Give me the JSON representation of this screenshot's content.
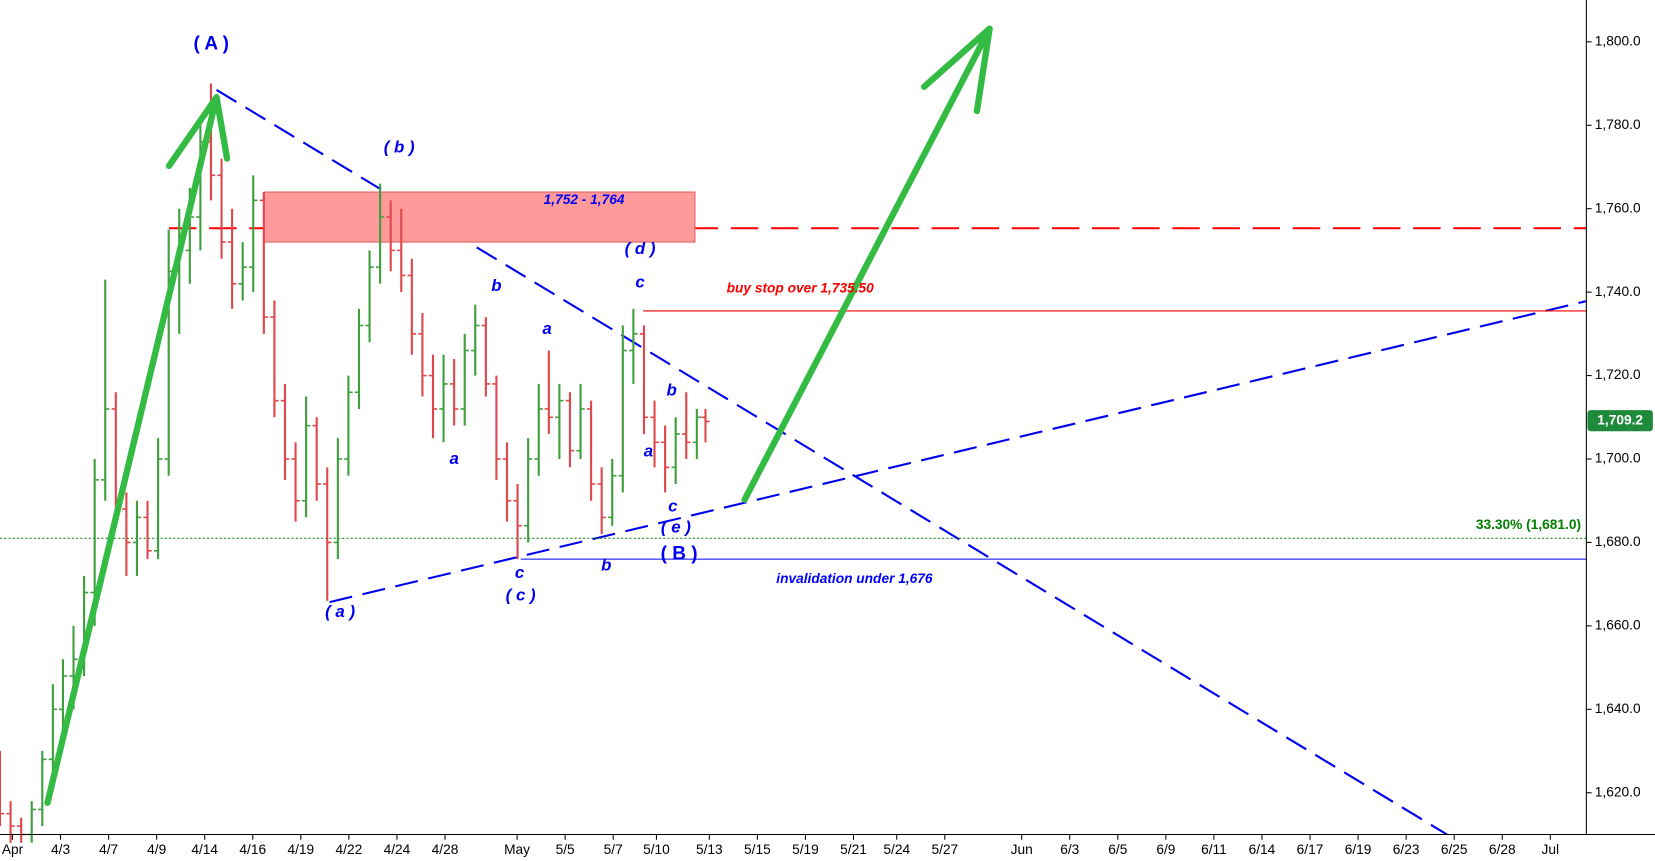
{
  "chart_data": {
    "type": "ohlc",
    "x": [
      -0.26,
      -0.04,
      0.18,
      0.4,
      0.62,
      0.84,
      1.05,
      1.27,
      1.49,
      1.71,
      1.93,
      2.15,
      2.37,
      2.59,
      2.81,
      3.03,
      3.25,
      3.47,
      3.69,
      3.91,
      4.13,
      4.35,
      4.57,
      4.79,
      5.01,
      5.23,
      5.45,
      5.67,
      5.89,
      6.11,
      6.33,
      6.55,
      6.77,
      6.99,
      7.21,
      7.43,
      7.65,
      7.87,
      8.09,
      8.31,
      8.53,
      8.75,
      8.97,
      9.19,
      9.41,
      9.63,
      9.85,
      10.07,
      10.29,
      10.51,
      10.73,
      10.95,
      11.16,
      11.38,
      11.6,
      11.82,
      12.04,
      12.26,
      12.48,
      12.7,
      12.92,
      13.14,
      13.36,
      13.58,
      13.8,
      14.02,
      14.24,
      14.42
    ],
    "open": [
      1628,
      1615,
      1612,
      1610,
      1616,
      1628,
      1640,
      1648,
      1652,
      1668,
      1695,
      1712,
      1688,
      1680,
      1686,
      1678,
      1700,
      1745,
      1750,
      1758,
      1776,
      1768,
      1752,
      1742,
      1746,
      1762,
      1734,
      1714,
      1700,
      1690,
      1708,
      1694,
      1680,
      1700,
      1716,
      1732,
      1746,
      1758,
      1750,
      1744,
      1730,
      1720,
      1712,
      1718,
      1712,
      1726,
      1732,
      1718,
      1700,
      1690,
      1684,
      1700,
      1712,
      1710,
      1714,
      1702,
      1712,
      1694,
      1686,
      1696,
      1726,
      1730,
      1710,
      1704,
      1698,
      1706,
      1704,
      1710
    ],
    "high": [
      1630,
      1618,
      1614,
      1618,
      1630,
      1646,
      1652,
      1660,
      1672,
      1700,
      1743,
      1716,
      1692,
      1690,
      1690,
      1705,
      1755,
      1760,
      1765,
      1782,
      1790,
      1772,
      1760,
      1752,
      1768,
      1764,
      1738,
      1718,
      1704,
      1715,
      1710,
      1698,
      1705,
      1720,
      1736,
      1750,
      1766,
      1762,
      1760,
      1748,
      1735,
      1725,
      1725,
      1724,
      1730,
      1737,
      1734,
      1720,
      1704,
      1694,
      1705,
      1718,
      1726,
      1718,
      1716,
      1718,
      1714,
      1698,
      1700,
      1732,
      1736,
      1732,
      1714,
      1708,
      1710,
      1716,
      1712,
      1712
    ],
    "low": [
      1612,
      1608,
      1608,
      1608,
      1612,
      1622,
      1632,
      1640,
      1648,
      1660,
      1690,
      1685,
      1672,
      1672,
      1676,
      1676,
      1696,
      1730,
      1742,
      1750,
      1762,
      1748,
      1736,
      1738,
      1740,
      1730,
      1710,
      1695,
      1685,
      1686,
      1690,
      1666,
      1676,
      1696,
      1712,
      1728,
      1742,
      1745,
      1740,
      1725,
      1715,
      1705,
      1704,
      1708,
      1708,
      1720,
      1715,
      1695,
      1685,
      1676,
      1680,
      1696,
      1706,
      1700,
      1698,
      1700,
      1690,
      1682,
      1684,
      1692,
      1718,
      1706,
      1698,
      1692,
      1694,
      1700,
      1700,
      1704
    ],
    "close": [
      1615,
      1612,
      1610,
      1616,
      1628,
      1640,
      1648,
      1652,
      1668,
      1695,
      1712,
      1688,
      1680,
      1686,
      1678,
      1700,
      1745,
      1750,
      1758,
      1776,
      1768,
      1752,
      1742,
      1746,
      1762,
      1734,
      1714,
      1700,
      1690,
      1708,
      1694,
      1680,
      1700,
      1716,
      1732,
      1746,
      1758,
      1750,
      1744,
      1730,
      1720,
      1712,
      1718,
      1712,
      1726,
      1732,
      1718,
      1700,
      1690,
      1684,
      1700,
      1712,
      1710,
      1714,
      1702,
      1712,
      1694,
      1686,
      1696,
      1726,
      1730,
      1710,
      1704,
      1698,
      1706,
      1704,
      1710,
      1709
    ],
    "up_color": "#3f9f3f",
    "down_color": "#e0474c",
    "xlim": [
      -0.26,
      32.75
    ],
    "xticks": [
      {
        "value": 0,
        "label": "Apr"
      },
      {
        "value": 1.0,
        "label": "4/3"
      },
      {
        "value": 2.0,
        "label": "4/7"
      },
      {
        "value": 3.0,
        "label": "4/9"
      },
      {
        "value": 4.0,
        "label": "4/14"
      },
      {
        "value": 5.0,
        "label": "4/16"
      },
      {
        "value": 6.0,
        "label": "4/19"
      },
      {
        "value": 7.0,
        "label": "4/22"
      },
      {
        "value": 8.0,
        "label": "4/24"
      },
      {
        "value": 9.0,
        "label": "4/28"
      },
      {
        "value": 10.5,
        "label": "May"
      },
      {
        "value": 11.5,
        "label": "5/5"
      },
      {
        "value": 12.5,
        "label": "5/7"
      },
      {
        "value": 13.4,
        "label": "5/10"
      },
      {
        "value": 14.5,
        "label": "5/13"
      },
      {
        "value": 15.5,
        "label": "5/15"
      },
      {
        "value": 16.5,
        "label": "5/19"
      },
      {
        "value": 17.5,
        "label": "5/21"
      },
      {
        "value": 18.4,
        "label": "5/24"
      },
      {
        "value": 19.4,
        "label": "5/27"
      },
      {
        "value": 21.0,
        "label": "Jun"
      },
      {
        "value": 22.0,
        "label": "6/3"
      },
      {
        "value": 23.0,
        "label": "6/5"
      },
      {
        "value": 24.0,
        "label": "6/9"
      },
      {
        "value": 25.0,
        "label": "6/11"
      },
      {
        "value": 26.0,
        "label": "6/14"
      },
      {
        "value": 27.0,
        "label": "6/17"
      },
      {
        "value": 28.0,
        "label": "6/19"
      },
      {
        "value": 29.0,
        "label": "6/23"
      },
      {
        "value": 30.0,
        "label": "6/25"
      },
      {
        "value": 31.0,
        "label": "6/28"
      },
      {
        "value": 32.0,
        "label": "Jul"
      }
    ],
    "ylim": [
      1610,
      1810
    ],
    "yticks": [
      {
        "value": 1620,
        "label": "1,620.0"
      },
      {
        "value": 1640,
        "label": "1,640.0"
      },
      {
        "value": 1660,
        "label": "1,660.0"
      },
      {
        "value": 1680,
        "label": "1,680.0"
      },
      {
        "value": 1700,
        "label": "1,700.0"
      },
      {
        "value": 1720,
        "label": "1,720.0"
      },
      {
        "value": 1740,
        "label": "1,740.0"
      },
      {
        "value": 1760,
        "label": "1,760.0"
      },
      {
        "value": 1780,
        "label": "1,780.0"
      },
      {
        "value": 1800,
        "label": "1,800.0"
      }
    ],
    "last_price": {
      "value": 1709.2,
      "label": "1,709.2",
      "color": "#1f8a3a"
    },
    "zone": {
      "low": 1752,
      "high": 1764,
      "label": "1,752 - 1,764",
      "color": "#ff9a9a"
    },
    "levels": [
      {
        "value": 1735.5,
        "label": "buy stop over 1,735.50",
        "color": "#ff0000"
      },
      {
        "value": 1676,
        "label": "invalidation under 1,676",
        "color": "#0000ff"
      },
      {
        "value": 1681,
        "label": "33.30% (1,681.0)",
        "color": "#008000"
      }
    ],
    "wave_labels": [
      "( A )",
      "( b )",
      "( d )",
      "c",
      "b",
      "a",
      "a",
      "b",
      "a",
      "c",
      "( e )",
      "( B )",
      "c",
      "b",
      "( c )",
      "( a )"
    ]
  }
}
